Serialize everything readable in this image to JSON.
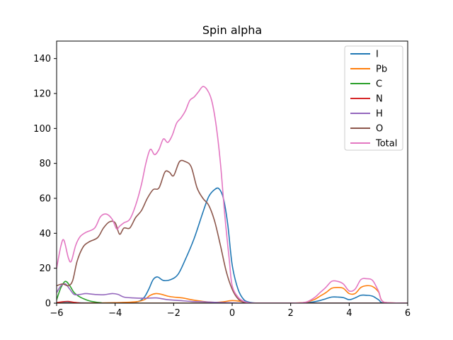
{
  "chart_data": {
    "type": "line",
    "title": "Spin alpha",
    "xlabel": "",
    "ylabel": "",
    "xlim": [
      -6,
      6
    ],
    "ylim": [
      0,
      150
    ],
    "xticks": [
      -6,
      -4,
      -2,
      0,
      2,
      4,
      6
    ],
    "yticks": [
      0,
      20,
      40,
      60,
      80,
      100,
      120,
      140
    ],
    "grid": false,
    "legend": "top-right",
    "series": [
      {
        "name": "I",
        "color": "#1f77b4",
        "x": [
          -6.0,
          -5.6,
          -5.2,
          -4.6,
          -4.0,
          -3.5,
          -3.2,
          -3.0,
          -2.85,
          -2.7,
          -2.55,
          -2.35,
          -2.1,
          -1.85,
          -1.6,
          -1.3,
          -1.0,
          -0.8,
          -0.6,
          -0.45,
          -0.3,
          -0.15,
          0.0,
          0.2,
          0.4,
          0.6,
          0.8,
          1.0,
          2.0,
          2.5,
          2.8,
          3.0,
          3.2,
          3.4,
          3.6,
          3.8,
          4.0,
          4.2,
          4.4,
          4.6,
          4.8,
          5.0,
          5.2,
          6.0
        ],
        "y": [
          0.3,
          0.4,
          0.2,
          0.1,
          0.2,
          0.5,
          1.0,
          3.5,
          8.0,
          13.5,
          15.0,
          13.0,
          13.5,
          16.5,
          25.0,
          37.0,
          52.0,
          61.0,
          65.0,
          65.5,
          60.0,
          45.0,
          22.0,
          8.0,
          2.0,
          0.5,
          0.1,
          0.0,
          0.0,
          0.2,
          0.8,
          1.5,
          2.5,
          3.5,
          3.5,
          3.2,
          2.0,
          3.0,
          4.5,
          4.5,
          4.0,
          2.0,
          0.0,
          0.0
        ]
      },
      {
        "name": "Pb",
        "color": "#ff7f0e",
        "x": [
          -6.0,
          -5.0,
          -4.0,
          -3.3,
          -3.0,
          -2.8,
          -2.6,
          -2.4,
          -2.2,
          -2.0,
          -1.7,
          -1.4,
          -1.0,
          -0.6,
          -0.3,
          0.0,
          0.3,
          0.5,
          0.8,
          2.0,
          2.5,
          2.8,
          3.0,
          3.2,
          3.4,
          3.6,
          3.8,
          4.0,
          4.2,
          4.4,
          4.6,
          4.8,
          5.0,
          5.2,
          6.0
        ],
        "y": [
          0.0,
          0.0,
          0.3,
          0.8,
          2.0,
          4.5,
          5.5,
          5.0,
          4.0,
          3.5,
          3.0,
          2.0,
          1.0,
          0.5,
          0.8,
          1.5,
          1.0,
          0.3,
          0.0,
          0.0,
          0.5,
          2.0,
          4.0,
          6.0,
          8.5,
          9.0,
          8.5,
          5.5,
          5.5,
          9.0,
          10.0,
          9.5,
          6.5,
          0.5,
          0.0
        ]
      },
      {
        "name": "C",
        "color": "#2ca02c",
        "x": [
          -6.0,
          -5.85,
          -5.7,
          -5.55,
          -5.4,
          -5.2,
          -5.0,
          -4.8,
          -4.5,
          -4.0,
          0.0,
          6.0
        ],
        "y": [
          2.0,
          9.0,
          12.5,
          10.0,
          6.0,
          3.5,
          2.0,
          1.0,
          0.3,
          0.0,
          0.0,
          0.0
        ]
      },
      {
        "name": "N",
        "color": "#d62728",
        "x": [
          -6.0,
          -5.8,
          -5.6,
          -5.4,
          -5.2,
          -5.0,
          0.0,
          6.0
        ],
        "y": [
          0.3,
          0.8,
          1.0,
          0.5,
          0.1,
          0.0,
          0.0,
          0.0
        ]
      },
      {
        "name": "H",
        "color": "#9467bd",
        "x": [
          -6.0,
          -5.85,
          -5.7,
          -5.55,
          -5.4,
          -5.2,
          -5.0,
          -4.7,
          -4.4,
          -4.1,
          -3.9,
          -3.7,
          -3.4,
          -3.0,
          -2.6,
          -2.2,
          -1.8,
          -1.4,
          -1.0,
          -0.6,
          -0.2,
          0.2,
          0.6,
          1.0,
          6.0
        ],
        "y": [
          6.0,
          10.0,
          11.0,
          8.0,
          5.0,
          5.0,
          5.5,
          5.0,
          4.8,
          5.5,
          5.0,
          3.5,
          3.0,
          2.8,
          3.0,
          2.0,
          1.5,
          1.0,
          0.8,
          0.5,
          0.3,
          0.1,
          0.0,
          0.0,
          0.0
        ]
      },
      {
        "name": "O",
        "color": "#8c564b",
        "x": [
          -6.0,
          -5.8,
          -5.6,
          -5.45,
          -5.3,
          -5.1,
          -4.9,
          -4.6,
          -4.4,
          -4.2,
          -4.0,
          -3.85,
          -3.7,
          -3.5,
          -3.3,
          -3.1,
          -2.9,
          -2.7,
          -2.5,
          -2.3,
          -2.15,
          -2.0,
          -1.8,
          -1.6,
          -1.4,
          -1.2,
          -1.0,
          -0.8,
          -0.6,
          -0.4,
          -0.2,
          0.0,
          0.2,
          0.4,
          0.6,
          1.0,
          6.0
        ],
        "y": [
          10.0,
          11.0,
          10.0,
          13.0,
          24.0,
          32.0,
          35.0,
          37.5,
          43.0,
          46.5,
          46.0,
          39.5,
          43.0,
          43.0,
          49.0,
          53.0,
          60.0,
          65.0,
          66.0,
          75.0,
          75.0,
          73.0,
          81.0,
          81.0,
          78.0,
          66.0,
          60.0,
          56.0,
          47.0,
          33.0,
          18.0,
          8.0,
          2.5,
          0.5,
          0.0,
          0.0,
          0.0
        ]
      },
      {
        "name": "Total",
        "color": "#e377c2",
        "x": [
          -6.0,
          -5.85,
          -5.75,
          -5.6,
          -5.5,
          -5.35,
          -5.2,
          -5.0,
          -4.7,
          -4.5,
          -4.3,
          -4.1,
          -3.95,
          -3.85,
          -3.7,
          -3.5,
          -3.3,
          -3.1,
          -2.95,
          -2.8,
          -2.65,
          -2.5,
          -2.35,
          -2.2,
          -2.05,
          -1.9,
          -1.75,
          -1.6,
          -1.45,
          -1.3,
          -1.15,
          -1.0,
          -0.85,
          -0.7,
          -0.55,
          -0.4,
          -0.25,
          -0.1,
          0.0,
          0.2,
          0.4,
          0.6,
          0.8,
          1.0,
          2.0,
          2.5,
          2.8,
          3.0,
          3.2,
          3.4,
          3.6,
          3.8,
          4.0,
          4.2,
          4.4,
          4.6,
          4.8,
          5.0,
          5.2,
          6.0
        ],
        "y": [
          20.0,
          33.0,
          36.0,
          26.0,
          24.0,
          33.0,
          38.0,
          40.5,
          43.0,
          49.5,
          51.0,
          48.0,
          42.5,
          44.0,
          46.0,
          48.0,
          56.0,
          68.0,
          80.0,
          88.0,
          85.0,
          88.0,
          94.0,
          92.0,
          96.0,
          103.0,
          106.0,
          110.0,
          116.0,
          118.0,
          121.0,
          124.0,
          122.0,
          116.0,
          102.0,
          80.0,
          50.0,
          25.0,
          10.0,
          3.5,
          1.0,
          0.2,
          0.0,
          0.0,
          0.0,
          0.5,
          3.0,
          6.0,
          9.0,
          12.5,
          12.5,
          11.0,
          7.0,
          8.0,
          13.5,
          14.0,
          13.0,
          7.0,
          0.5,
          0.0
        ]
      }
    ]
  }
}
